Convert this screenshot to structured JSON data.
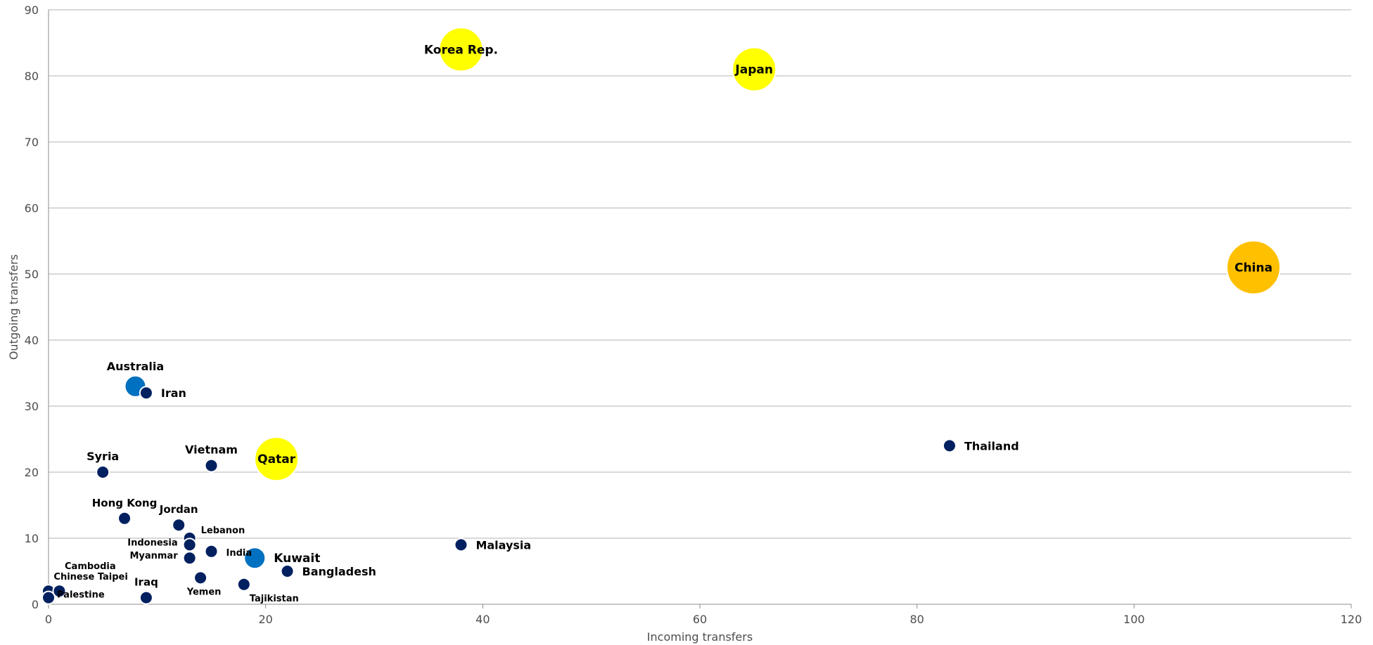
{
  "chart_data": {
    "type": "scatter",
    "title": "",
    "xlabel": "Incoming transfers",
    "ylabel": "Outgoing transfers",
    "xlim": [
      0,
      120
    ],
    "ylim": [
      0,
      90
    ],
    "xticks": [
      0,
      20,
      40,
      60,
      80,
      100,
      120
    ],
    "yticks": [
      0,
      10,
      20,
      30,
      40,
      50,
      60,
      70,
      80,
      90
    ],
    "grid": "horizontal",
    "legend": "none",
    "colors": {
      "dark": "#002060",
      "blue": "#0070c0",
      "yellow": "#ffff00",
      "orange": "#ffc000"
    },
    "points": [
      {
        "label": "Korea Rep.",
        "x": 38,
        "y": 84,
        "color": "yellow",
        "size": "large",
        "label_pos": "center"
      },
      {
        "label": "Japan",
        "x": 65,
        "y": 81,
        "color": "yellow",
        "size": "large",
        "label_pos": "center"
      },
      {
        "label": "China",
        "x": 111,
        "y": 51,
        "color": "orange",
        "size": "xlarge",
        "label_pos": "center"
      },
      {
        "label": "Qatar",
        "x": 21,
        "y": 22,
        "color": "yellow",
        "size": "large",
        "label_pos": "center"
      },
      {
        "label": "Australia",
        "x": 8,
        "y": 33,
        "color": "blue",
        "size": "medium",
        "label_pos": "above"
      },
      {
        "label": "Iran",
        "x": 9,
        "y": 32,
        "color": "dark",
        "size": "small",
        "label_pos": "right"
      },
      {
        "label": "Thailand",
        "x": 83,
        "y": 24,
        "color": "dark",
        "size": "small",
        "label_pos": "right"
      },
      {
        "label": "Syria",
        "x": 5,
        "y": 20,
        "color": "dark",
        "size": "small",
        "label_pos": "above"
      },
      {
        "label": "Vietnam",
        "x": 15,
        "y": 21,
        "color": "dark",
        "size": "small",
        "label_pos": "above"
      },
      {
        "label": "Hong Kong",
        "x": 7,
        "y": 13,
        "color": "dark",
        "size": "small",
        "label_pos": "above"
      },
      {
        "label": "Jordan",
        "x": 12,
        "y": 12,
        "color": "dark",
        "size": "small",
        "label_pos": "above"
      },
      {
        "label": "Lebanon",
        "x": 13,
        "y": 10,
        "color": "dark",
        "size": "small",
        "label_pos": "upper-right"
      },
      {
        "label": "Indonesia",
        "x": 13,
        "y": 9,
        "color": "dark",
        "size": "small",
        "label_pos": "left"
      },
      {
        "label": "India",
        "x": 15,
        "y": 8,
        "color": "dark",
        "size": "small",
        "label_pos": "right"
      },
      {
        "label": "Myanmar",
        "x": 13,
        "y": 7,
        "color": "dark",
        "size": "small",
        "label_pos": "left"
      },
      {
        "label": "Kuwait",
        "x": 19,
        "y": 7,
        "color": "blue",
        "size": "medium",
        "label_pos": "right"
      },
      {
        "label": "Malaysia",
        "x": 38,
        "y": 9,
        "color": "dark",
        "size": "small",
        "label_pos": "right"
      },
      {
        "label": "Bangladesh",
        "x": 22,
        "y": 5,
        "color": "dark",
        "size": "small",
        "label_pos": "right"
      },
      {
        "label": "Yemen",
        "x": 14,
        "y": 4,
        "color": "dark",
        "size": "small",
        "label_pos": "below"
      },
      {
        "label": "Tajikistan",
        "x": 18,
        "y": 3,
        "color": "dark",
        "size": "small",
        "label_pos": "lower-right"
      },
      {
        "label": "Iraq",
        "x": 9,
        "y": 1,
        "color": "dark",
        "size": "small",
        "label_pos": "above"
      },
      {
        "label": "Cambodia",
        "x": 0,
        "y": 2,
        "color": "dark",
        "size": "small",
        "label_pos": "cambodia"
      },
      {
        "label": "Chinese Taipei",
        "x": 1,
        "y": 2,
        "color": "dark",
        "size": "small",
        "label_pos": "taipei"
      },
      {
        "label": "Palestine",
        "x": 0,
        "y": 1,
        "color": "dark",
        "size": "small",
        "label_pos": "palestine"
      }
    ]
  }
}
